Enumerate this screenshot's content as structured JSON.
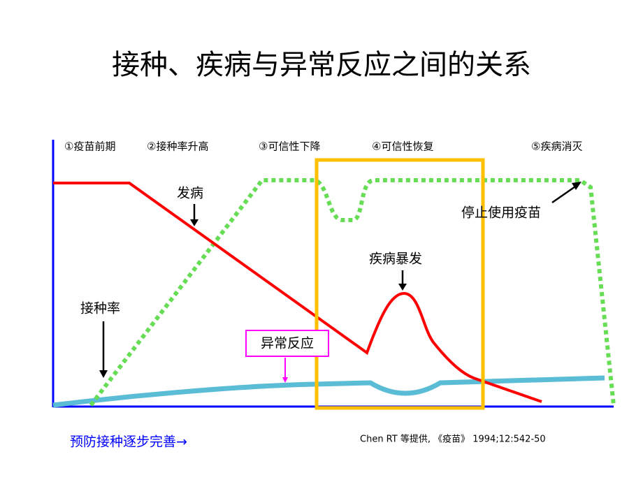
{
  "title": "接种、疾病与异常反应之间的关系",
  "phases": [
    "①疫苗前期",
    "②接种率升高",
    "③可信性下降",
    "④可信性恢复",
    "⑤疾病消灭"
  ],
  "labels": {
    "disease": "发病",
    "stop_vaccine": "停止使用疫苗",
    "outbreak": "疾病暴发",
    "coverage": "接种率",
    "adverse": "异常反应"
  },
  "footer": "预防接种逐步完善→",
  "citation": "Chen RT 等提供, 《疫苗》 1994;12:542-50"
}
